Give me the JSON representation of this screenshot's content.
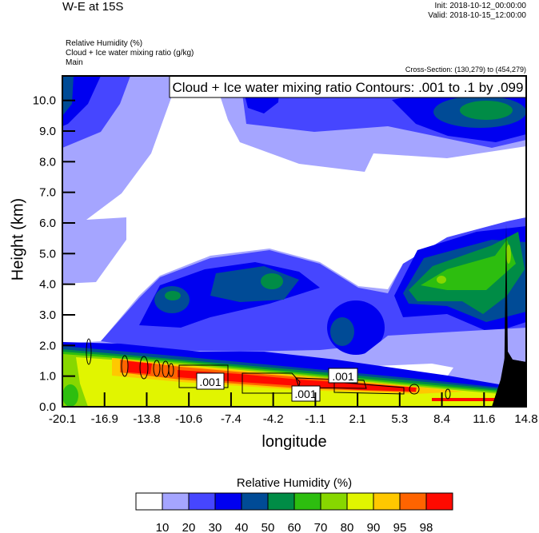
{
  "header": {
    "title": "W-E at 15S",
    "init": "Init: 2018-10-12_00:00:00",
    "valid": "Valid: 2018-10-15_12:00:00",
    "fields": [
      "Relative Humidity   (%)",
      "Cloud + Ice water mixing ratio   (g/kg)",
      "Main"
    ],
    "cross_section": "Cross-Section: (130,279) to (454,279)"
  },
  "chart_data": {
    "type": "heatmap",
    "title": "W-E at 15S",
    "xlabel": "longitude",
    "ylabel": "Height (km)",
    "xlim": [
      -20.1,
      14.8
    ],
    "ylim": [
      0,
      10.8
    ],
    "x_ticks": [
      "-20.1",
      "-16.9",
      "-13.8",
      "-10.6",
      "-7.4",
      "-4.2",
      "-1.1",
      "2.1",
      "5.3",
      "8.4",
      "11.6",
      "14.8"
    ],
    "y_ticks": [
      "0.0",
      "1.0",
      "2.0",
      "3.0",
      "4.0",
      "5.0",
      "6.0",
      "7.0",
      "8.0",
      "9.0",
      "10.0"
    ],
    "contour_label": "Cloud + Ice water mixing ratio Contours: .001 to .1 by .099",
    "contour_line_labels": [
      ".001",
      ".001",
      ".001"
    ],
    "colorbar": {
      "title": "Relative Humidity  (%)",
      "levels": [
        "10",
        "20",
        "30",
        "40",
        "50",
        "60",
        "70",
        "80",
        "90",
        "95",
        "98"
      ],
      "colors": [
        "#ffffff",
        "#a5a5ff",
        "#4646ff",
        "#0000f0",
        "#004b96",
        "#008c46",
        "#2dbe0f",
        "#87d700",
        "#e1f500",
        "#ffc800",
        "#ff6400",
        "#ff0a00"
      ]
    }
  }
}
